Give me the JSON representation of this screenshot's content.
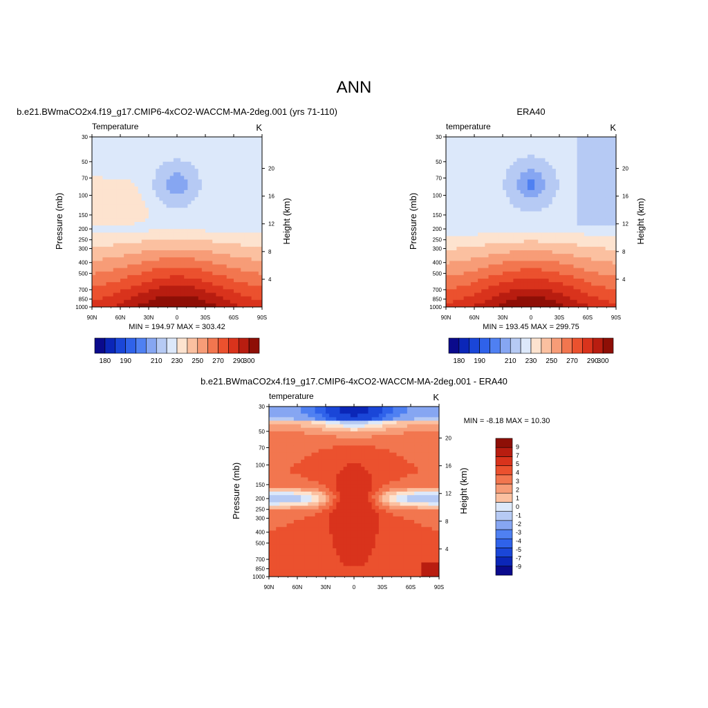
{
  "page": {
    "title": "ANN"
  },
  "colors": {
    "abs_palette": [
      "#0a0a8c",
      "#0b26b8",
      "#1a46d8",
      "#2f62ea",
      "#4f80f2",
      "#86a6f2",
      "#b6caf4",
      "#dce8fa",
      "#fde3cf",
      "#fbc0a0",
      "#f79c77",
      "#f2764f",
      "#eb512e",
      "#d9331c",
      "#b81d10",
      "#8e0f06"
    ],
    "diff_palette": [
      "#0a0a8c",
      "#0b26b8",
      "#1a46d8",
      "#2f62ea",
      "#4f80f2",
      "#86a6f2",
      "#b6caf4",
      "#dce8fa",
      "#fde3cf",
      "#fbc0a0",
      "#f79c77",
      "#f2764f",
      "#eb512e",
      "#d9331c",
      "#b81d10",
      "#8e0f06"
    ]
  },
  "chart_data": [
    {
      "type": "heatmap",
      "id": "model",
      "title": "b.e21.BWmaCO2x4.f19_g17.CMIP6-4xCO2-WACCM-MA-2deg.001 (yrs 71-110)",
      "left_label": "Temperature",
      "right_label": "K",
      "ylabel": "Pressure (mb)",
      "y2label": "Height (km)",
      "x_ticks": [
        "90N",
        "60N",
        "30N",
        "0",
        "30S",
        "60S",
        "90S"
      ],
      "p_ticks": [
        30,
        50,
        70,
        100,
        150,
        200,
        250,
        300,
        400,
        500,
        700,
        850,
        1000
      ],
      "h_ticks": [
        4,
        8,
        12,
        16,
        20
      ],
      "ylim": [
        1000,
        30
      ],
      "xlim": [
        90,
        -90
      ],
      "stats": "MIN = 194.97  MAX = 303.42",
      "colorbar": {
        "orientation": "horizontal",
        "levels": [
          175,
          180,
          185,
          190,
          195,
          200,
          210,
          220,
          230,
          240,
          250,
          260,
          270,
          280,
          290,
          300
        ],
        "labels": [
          "180",
          "190",
          "210",
          "230",
          "250",
          "270",
          "290",
          "300"
        ]
      }
    },
    {
      "type": "heatmap",
      "id": "obs",
      "title": "ERA40",
      "left_label": "temperature",
      "right_label": "K",
      "ylabel": "Pressure (mb)",
      "y2label": "Height (km)",
      "x_ticks": [
        "90N",
        "60N",
        "30N",
        "0",
        "30S",
        "60S",
        "90S"
      ],
      "p_ticks": [
        30,
        50,
        70,
        100,
        150,
        200,
        250,
        300,
        400,
        500,
        700,
        850,
        1000
      ],
      "h_ticks": [
        4,
        8,
        12,
        16,
        20
      ],
      "ylim": [
        1000,
        30
      ],
      "xlim": [
        90,
        -90
      ],
      "stats": "MIN = 193.45  MAX = 299.75",
      "colorbar": {
        "orientation": "horizontal",
        "levels": [
          175,
          180,
          185,
          190,
          195,
          200,
          210,
          220,
          230,
          240,
          250,
          260,
          270,
          280,
          290,
          300
        ],
        "labels": [
          "180",
          "190",
          "210",
          "230",
          "250",
          "270",
          "290",
          "300"
        ]
      }
    },
    {
      "type": "heatmap",
      "id": "diff",
      "title": "b.e21.BWmaCO2x4.f19_g17.CMIP6-4xCO2-WACCM-MA-2deg.001 - ERA40",
      "left_label": "temperature",
      "right_label": "K",
      "ylabel": "Pressure (mb)",
      "y2label": "Height (km)",
      "x_ticks": [
        "90N",
        "60N",
        "30N",
        "0",
        "30S",
        "60S",
        "90S"
      ],
      "p_ticks": [
        30,
        50,
        70,
        100,
        150,
        200,
        250,
        300,
        400,
        500,
        700,
        850,
        1000
      ],
      "h_ticks": [
        4,
        8,
        12,
        16,
        20
      ],
      "ylim": [
        1000,
        30
      ],
      "xlim": [
        90,
        -90
      ],
      "stats": "MIN =  -8.18  MAX =  10.30",
      "colorbar": {
        "orientation": "vertical",
        "levels": [
          -9,
          -7,
          -5,
          -4,
          -3,
          -2,
          -1,
          0,
          1,
          2,
          3,
          4,
          5,
          7,
          9
        ],
        "labels": [
          "9",
          "7",
          "5",
          "4",
          "3",
          "2",
          "1",
          "0",
          "-1",
          "-2",
          "-3",
          "-4",
          "-5",
          "-7",
          "-9"
        ]
      }
    }
  ]
}
